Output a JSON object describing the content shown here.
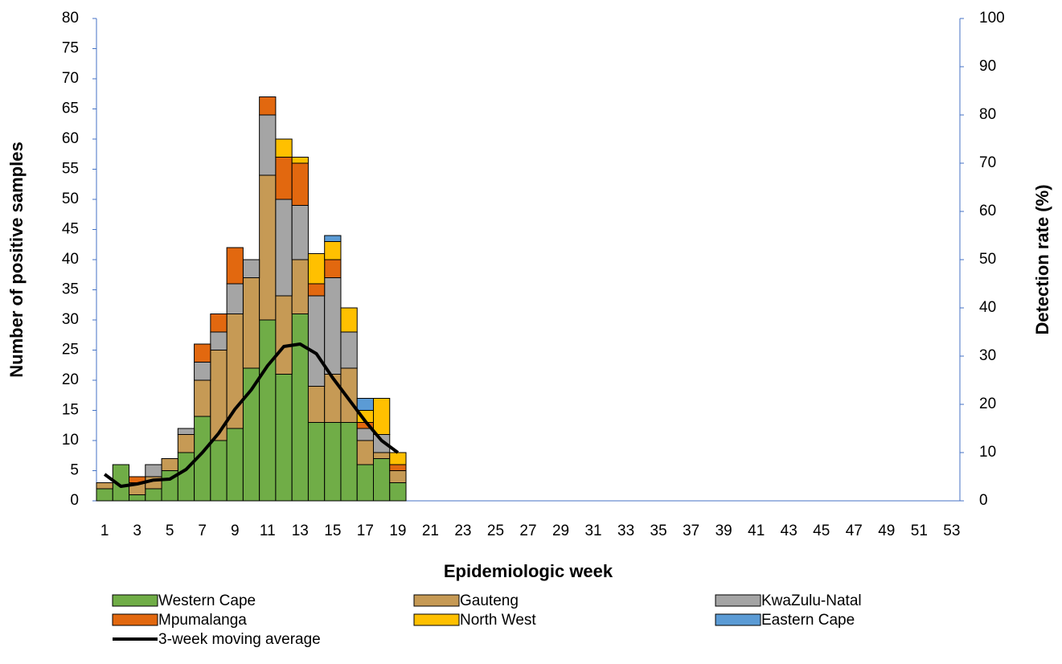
{
  "chart_data": {
    "type": "bar",
    "stacked": true,
    "x_label": "Epidemiologic week",
    "y_label": "Number of positive samples",
    "y2_label": "Detection rate (%)",
    "categories": [
      "1",
      null,
      "3",
      null,
      "5",
      null,
      "7",
      null,
      "9",
      null,
      "11",
      null,
      "13",
      null,
      "15",
      null,
      "17",
      null,
      "19",
      null,
      "21",
      null,
      "23",
      null,
      "25",
      null,
      "27",
      null,
      "29",
      null,
      "31",
      null,
      "33",
      null,
      "35",
      null,
      "37",
      null,
      "39",
      null,
      "41",
      null,
      "43",
      null,
      "45",
      null,
      "47",
      null,
      "49",
      null,
      "51",
      null,
      "53"
    ],
    "ylim": [
      0,
      80
    ],
    "yticks": [
      0,
      5,
      10,
      15,
      20,
      25,
      30,
      35,
      40,
      45,
      50,
      55,
      60,
      65,
      70,
      75,
      80
    ],
    "y2lim": [
      0,
      100
    ],
    "y2ticks": [
      0,
      10,
      20,
      30,
      40,
      50,
      60,
      70,
      80,
      90,
      100
    ],
    "series": [
      {
        "name": "Western Cape",
        "color": "#70ad47",
        "values": [
          2,
          6,
          1,
          2,
          5,
          8,
          14,
          10,
          12,
          22,
          30,
          21,
          31,
          13,
          13,
          13,
          6,
          7,
          3,
          null,
          null,
          null,
          null,
          null,
          null,
          null,
          null,
          null,
          null,
          null,
          null,
          null,
          null,
          null,
          null,
          null,
          null,
          null,
          null,
          null,
          null,
          null,
          null,
          null,
          null,
          null,
          null,
          null,
          null,
          null,
          null,
          null,
          null
        ]
      },
      {
        "name": "Gauteng",
        "color": "#c69a55",
        "values": [
          1,
          0,
          2,
          2,
          2,
          3,
          6,
          15,
          19,
          15,
          24,
          13,
          9,
          6,
          8,
          9,
          4,
          1,
          2,
          null,
          null,
          null,
          null,
          null,
          null,
          null,
          null,
          null,
          null,
          null,
          null,
          null,
          null,
          null,
          null,
          null,
          null,
          null,
          null,
          null,
          null,
          null,
          null,
          null,
          null,
          null,
          null,
          null,
          null,
          null,
          null,
          null,
          null
        ]
      },
      {
        "name": "KwaZulu-Natal",
        "color": "#a5a5a5",
        "values": [
          0,
          0,
          0,
          2,
          0,
          1,
          3,
          3,
          5,
          3,
          10,
          16,
          9,
          15,
          16,
          6,
          2,
          3,
          0,
          null,
          null,
          null,
          null,
          null,
          null,
          null,
          null,
          null,
          null,
          null,
          null,
          null,
          null,
          null,
          null,
          null,
          null,
          null,
          null,
          null,
          null,
          null,
          null,
          null,
          null,
          null,
          null,
          null,
          null,
          null,
          null,
          null,
          null
        ]
      },
      {
        "name": "Mpumalanga",
        "color": "#e2680f",
        "values": [
          0,
          0,
          1,
          0,
          0,
          0,
          3,
          3,
          6,
          0,
          3,
          7,
          7,
          2,
          3,
          0,
          1,
          0,
          1,
          null,
          null,
          null,
          null,
          null,
          null,
          null,
          null,
          null,
          null,
          null,
          null,
          null,
          null,
          null,
          null,
          null,
          null,
          null,
          null,
          null,
          null,
          null,
          null,
          null,
          null,
          null,
          null,
          null,
          null,
          null,
          null,
          null,
          null
        ]
      },
      {
        "name": "North West",
        "color": "#ffc000",
        "values": [
          0,
          0,
          0,
          0,
          0,
          0,
          0,
          0,
          0,
          0,
          0,
          3,
          1,
          5,
          3,
          4,
          2,
          6,
          2,
          null,
          null,
          null,
          null,
          null,
          null,
          null,
          null,
          null,
          null,
          null,
          null,
          null,
          null,
          null,
          null,
          null,
          null,
          null,
          null,
          null,
          null,
          null,
          null,
          null,
          null,
          null,
          null,
          null,
          null,
          null,
          null,
          null,
          null
        ]
      },
      {
        "name": "Eastern Cape",
        "color": "#5b9bd5",
        "values": [
          0,
          0,
          0,
          0,
          0,
          0,
          0,
          0,
          0,
          0,
          0,
          0,
          0,
          0,
          1,
          0,
          2,
          0,
          0,
          null,
          null,
          null,
          null,
          null,
          null,
          null,
          null,
          null,
          null,
          null,
          null,
          null,
          null,
          null,
          null,
          null,
          null,
          null,
          null,
          null,
          null,
          null,
          null,
          null,
          null,
          null,
          null,
          null,
          null,
          null,
          null,
          null,
          null
        ]
      },
      {
        "name": "3-week moving average",
        "type": "line",
        "axis": "y2",
        "color": "#000000",
        "values": [
          5.5,
          3,
          3.5,
          4.3,
          4.5,
          6.5,
          10,
          14,
          19,
          23,
          28,
          32,
          32.5,
          30.5,
          25.5,
          21,
          16.5,
          12.5,
          10,
          null,
          null,
          null,
          null,
          null,
          null,
          null,
          null,
          null,
          null,
          null,
          null,
          null,
          null,
          null,
          null,
          null,
          null,
          null,
          null,
          null,
          null,
          null,
          null,
          null,
          null,
          null,
          null,
          null,
          null,
          null,
          null,
          null,
          null
        ]
      }
    ]
  }
}
